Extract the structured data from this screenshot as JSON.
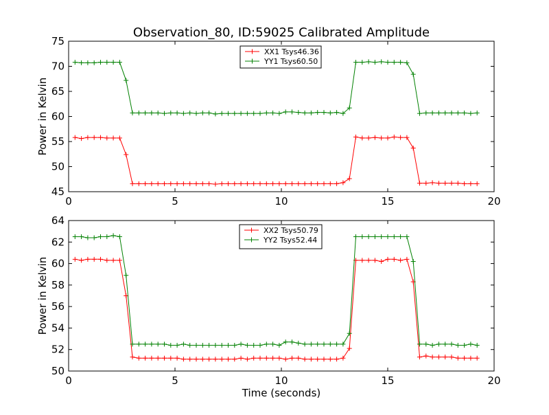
{
  "figure": {
    "title": "Observation_80, ID:59025 Calibrated Amplitude"
  },
  "chart_data": [
    {
      "type": "line",
      "xlabel": "",
      "ylabel": "Power in Kelvin",
      "xlim": [
        0,
        20
      ],
      "ylim": [
        45,
        75
      ],
      "xticks": [
        "0",
        "5",
        "10",
        "15",
        "20"
      ],
      "yticks": [
        "45",
        "50",
        "55",
        "60",
        "65",
        "70",
        "75"
      ],
      "legend_position": "top-center",
      "x": [
        0.3,
        0.6,
        0.9,
        1.2,
        1.5,
        1.8,
        2.1,
        2.4,
        2.7,
        3.0,
        3.3,
        3.6,
        3.9,
        4.2,
        4.5,
        4.8,
        5.1,
        5.4,
        5.7,
        6.0,
        6.3,
        6.6,
        6.9,
        7.2,
        7.5,
        7.8,
        8.1,
        8.4,
        8.7,
        9.0,
        9.3,
        9.6,
        9.9,
        10.2,
        10.5,
        10.8,
        11.1,
        11.4,
        11.7,
        12.0,
        12.3,
        12.6,
        12.9,
        13.2,
        13.5,
        13.8,
        14.1,
        14.4,
        14.7,
        15.0,
        15.3,
        15.6,
        15.9,
        16.2,
        16.5,
        16.8,
        17.1,
        17.4,
        17.7,
        18.0,
        18.3,
        18.6,
        18.9,
        19.2
      ],
      "series": [
        {
          "name": "XX1 Tsys46.36",
          "color": "#ff0000",
          "values": [
            55.8,
            55.6,
            55.8,
            55.8,
            55.8,
            55.7,
            55.7,
            55.7,
            52.4,
            46.6,
            46.6,
            46.6,
            46.6,
            46.6,
            46.6,
            46.6,
            46.6,
            46.6,
            46.6,
            46.6,
            46.6,
            46.6,
            46.5,
            46.6,
            46.6,
            46.6,
            46.6,
            46.6,
            46.6,
            46.6,
            46.6,
            46.6,
            46.6,
            46.6,
            46.6,
            46.6,
            46.6,
            46.6,
            46.6,
            46.6,
            46.6,
            46.6,
            46.8,
            47.6,
            55.9,
            55.7,
            55.7,
            55.8,
            55.7,
            55.7,
            55.9,
            55.8,
            55.8,
            53.7,
            46.7,
            46.7,
            46.8,
            46.7,
            46.7,
            46.7,
            46.7,
            46.6,
            46.6,
            46.6
          ]
        },
        {
          "name": "YY1 Tsys60.50",
          "color": "#008000",
          "values": [
            70.8,
            70.7,
            70.7,
            70.7,
            70.8,
            70.8,
            70.8,
            70.8,
            67.2,
            60.7,
            60.7,
            60.7,
            60.7,
            60.7,
            60.6,
            60.7,
            60.7,
            60.6,
            60.7,
            60.6,
            60.7,
            60.7,
            60.5,
            60.6,
            60.6,
            60.6,
            60.6,
            60.6,
            60.6,
            60.6,
            60.7,
            60.7,
            60.6,
            60.9,
            60.9,
            60.8,
            60.7,
            60.7,
            60.8,
            60.8,
            60.7,
            60.8,
            60.6,
            61.7,
            70.8,
            70.8,
            70.9,
            70.8,
            70.9,
            70.8,
            70.8,
            70.8,
            70.7,
            68.4,
            60.6,
            60.7,
            60.7,
            60.7,
            60.7,
            60.7,
            60.7,
            60.7,
            60.6,
            60.7
          ]
        }
      ]
    },
    {
      "type": "line",
      "xlabel": "Time (seconds)",
      "ylabel": "Power in Kelvin",
      "xlim": [
        0,
        20
      ],
      "ylim": [
        50,
        64
      ],
      "xticks": [
        "0",
        "5",
        "10",
        "15",
        "20"
      ],
      "yticks": [
        "50",
        "52",
        "54",
        "56",
        "58",
        "60",
        "62",
        "64"
      ],
      "legend_position": "top-center",
      "x": [
        0.3,
        0.6,
        0.9,
        1.2,
        1.5,
        1.8,
        2.1,
        2.4,
        2.7,
        3.0,
        3.3,
        3.6,
        3.9,
        4.2,
        4.5,
        4.8,
        5.1,
        5.4,
        5.7,
        6.0,
        6.3,
        6.6,
        6.9,
        7.2,
        7.5,
        7.8,
        8.1,
        8.4,
        8.7,
        9.0,
        9.3,
        9.6,
        9.9,
        10.2,
        10.5,
        10.8,
        11.1,
        11.4,
        11.7,
        12.0,
        12.3,
        12.6,
        12.9,
        13.2,
        13.5,
        13.8,
        14.1,
        14.4,
        14.7,
        15.0,
        15.3,
        15.6,
        15.9,
        16.2,
        16.5,
        16.8,
        17.1,
        17.4,
        17.7,
        18.0,
        18.3,
        18.6,
        18.9,
        19.2
      ],
      "series": [
        {
          "name": "XX2 Tsys50.79",
          "color": "#ff0000",
          "values": [
            60.4,
            60.3,
            60.4,
            60.4,
            60.4,
            60.3,
            60.3,
            60.3,
            57.0,
            51.3,
            51.2,
            51.2,
            51.2,
            51.2,
            51.2,
            51.2,
            51.2,
            51.1,
            51.1,
            51.1,
            51.1,
            51.1,
            51.1,
            51.1,
            51.1,
            51.1,
            51.2,
            51.1,
            51.2,
            51.2,
            51.2,
            51.2,
            51.2,
            51.1,
            51.2,
            51.2,
            51.1,
            51.1,
            51.1,
            51.1,
            51.1,
            51.1,
            51.2,
            52.1,
            60.3,
            60.3,
            60.3,
            60.3,
            60.2,
            60.4,
            60.4,
            60.3,
            60.4,
            58.3,
            51.3,
            51.4,
            51.3,
            51.3,
            51.3,
            51.3,
            51.2,
            51.2,
            51.2,
            51.2
          ]
        },
        {
          "name": "YY2 Tsys52.44",
          "color": "#008000",
          "values": [
            62.5,
            62.5,
            62.4,
            62.4,
            62.5,
            62.5,
            62.6,
            62.5,
            58.9,
            52.5,
            52.5,
            52.5,
            52.5,
            52.5,
            52.5,
            52.4,
            52.4,
            52.5,
            52.4,
            52.4,
            52.4,
            52.4,
            52.4,
            52.4,
            52.4,
            52.4,
            52.5,
            52.4,
            52.4,
            52.4,
            52.5,
            52.5,
            52.4,
            52.7,
            52.7,
            52.6,
            52.5,
            52.5,
            52.5,
            52.5,
            52.5,
            52.5,
            52.5,
            53.5,
            62.5,
            62.5,
            62.5,
            62.5,
            62.5,
            62.5,
            62.5,
            62.5,
            62.5,
            60.2,
            52.5,
            52.5,
            52.4,
            52.5,
            52.5,
            52.5,
            52.4,
            52.4,
            52.5,
            52.4
          ]
        }
      ]
    }
  ]
}
